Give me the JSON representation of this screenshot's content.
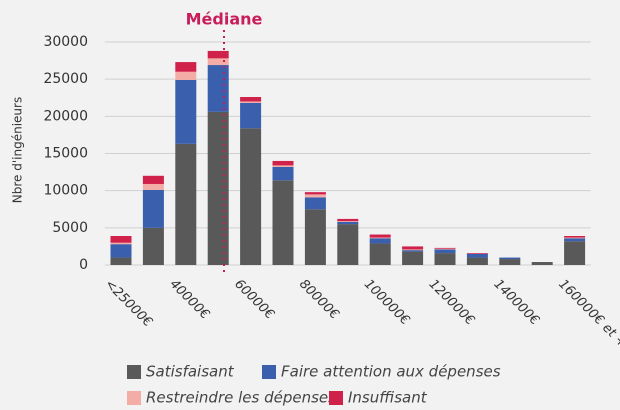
{
  "chart_data": {
    "type": "stacked-bar",
    "annotation": "Médiane",
    "y_label": "Nbre d'ingénieurs",
    "categories": [
      "<25000€",
      null,
      "40000€",
      null,
      "60000€",
      null,
      "80000€",
      null,
      "100000€",
      null,
      "120000€",
      null,
      "140000€",
      null,
      "160000€ et +"
    ],
    "series": [
      {
        "name": "Satisfaisant",
        "color": "#595959",
        "values": [
          1000,
          5000,
          16300,
          20600,
          18400,
          11400,
          7500,
          5500,
          2900,
          1800,
          1600,
          1000,
          800,
          400,
          3200
        ]
      },
      {
        "name": "Faire attention aux dépenses",
        "color": "#3a5fad",
        "values": [
          1800,
          5100,
          8600,
          6300,
          3400,
          1800,
          1600,
          300,
          700,
          200,
          500,
          500,
          200,
          0,
          400
        ]
      },
      {
        "name": "Restreindre les dépenses",
        "color": "#f4aca6",
        "values": [
          200,
          800,
          1100,
          900,
          200,
          200,
          400,
          100,
          100,
          100,
          100,
          0,
          0,
          0,
          100
        ]
      },
      {
        "name": "Insuffisant",
        "color": "#d0214a",
        "values": [
          900,
          1100,
          1300,
          1000,
          600,
          600,
          300,
          300,
          400,
          400,
          100,
          100,
          0,
          0,
          200
        ]
      }
    ],
    "ylim": [
      0,
      30000
    ],
    "yticks": [
      0,
      5000,
      10000,
      15000,
      20000,
      25000,
      30000
    ],
    "grid": true
  }
}
